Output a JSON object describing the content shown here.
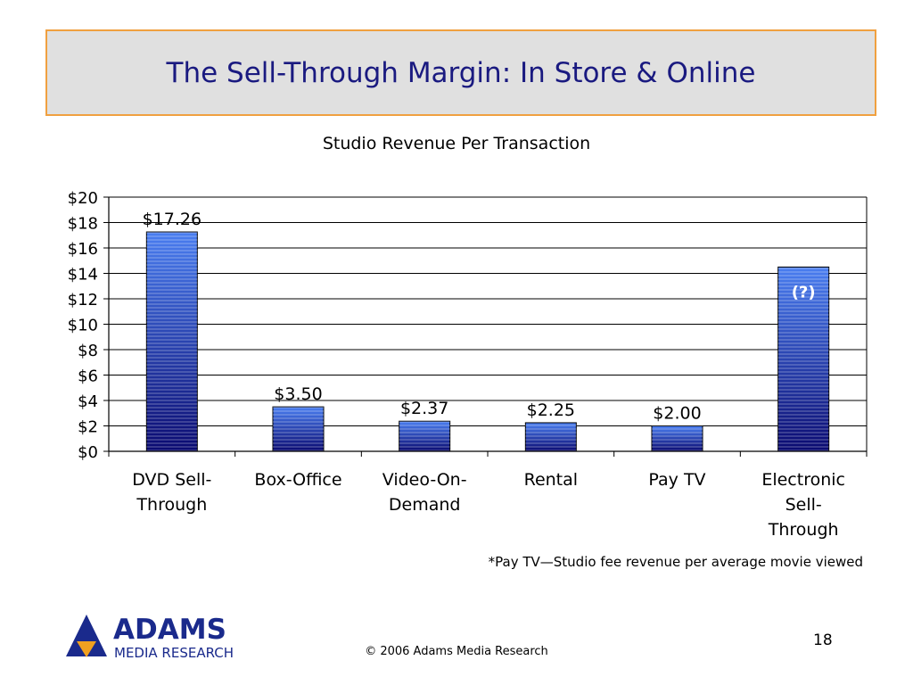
{
  "slide": {
    "title": "The Sell-Through Margin: In Store & Online",
    "footnote": "*Pay TV—Studio fee revenue per average movie viewed",
    "copyright": "© 2006 Adams Media Research",
    "page_number": "18",
    "logo": {
      "name": "ADAMS",
      "subtitle": "MEDIA RESEARCH"
    }
  },
  "colors": {
    "title_bg": "#e0e0e0",
    "title_border": "#f0a040",
    "title_text": "#1a1a80",
    "bar_light": "#4a7ef0",
    "bar_dark": "#0a0a70",
    "logo_blue": "#1a2a8c",
    "logo_orange": "#f0a020"
  },
  "chart_data": {
    "type": "bar",
    "title": "Studio Revenue Per Transaction",
    "xlabel": "",
    "ylabel": "",
    "ylim": [
      0,
      20
    ],
    "yticks": [
      0,
      2,
      4,
      6,
      8,
      10,
      12,
      14,
      16,
      18,
      20
    ],
    "ytick_labels": [
      "$0",
      "$2",
      "$4",
      "$6",
      "$8",
      "$10",
      "$12",
      "$14",
      "$16",
      "$18",
      "$20"
    ],
    "grid": true,
    "categories": [
      [
        "DVD Sell-",
        "Through"
      ],
      [
        "Box-Office"
      ],
      [
        "Video-On-",
        "Demand"
      ],
      [
        "Rental"
      ],
      [
        "Pay TV"
      ],
      [
        "Electronic",
        "Sell-",
        "Through"
      ]
    ],
    "values": [
      17.26,
      3.5,
      2.37,
      2.25,
      2.0,
      14.5
    ],
    "data_labels": [
      "$17.26",
      "$3.50",
      "$2.37",
      "$2.25",
      "$2.00",
      "(?)"
    ],
    "data_label_positions": [
      "above",
      "above",
      "above",
      "above",
      "above",
      "inside"
    ]
  }
}
